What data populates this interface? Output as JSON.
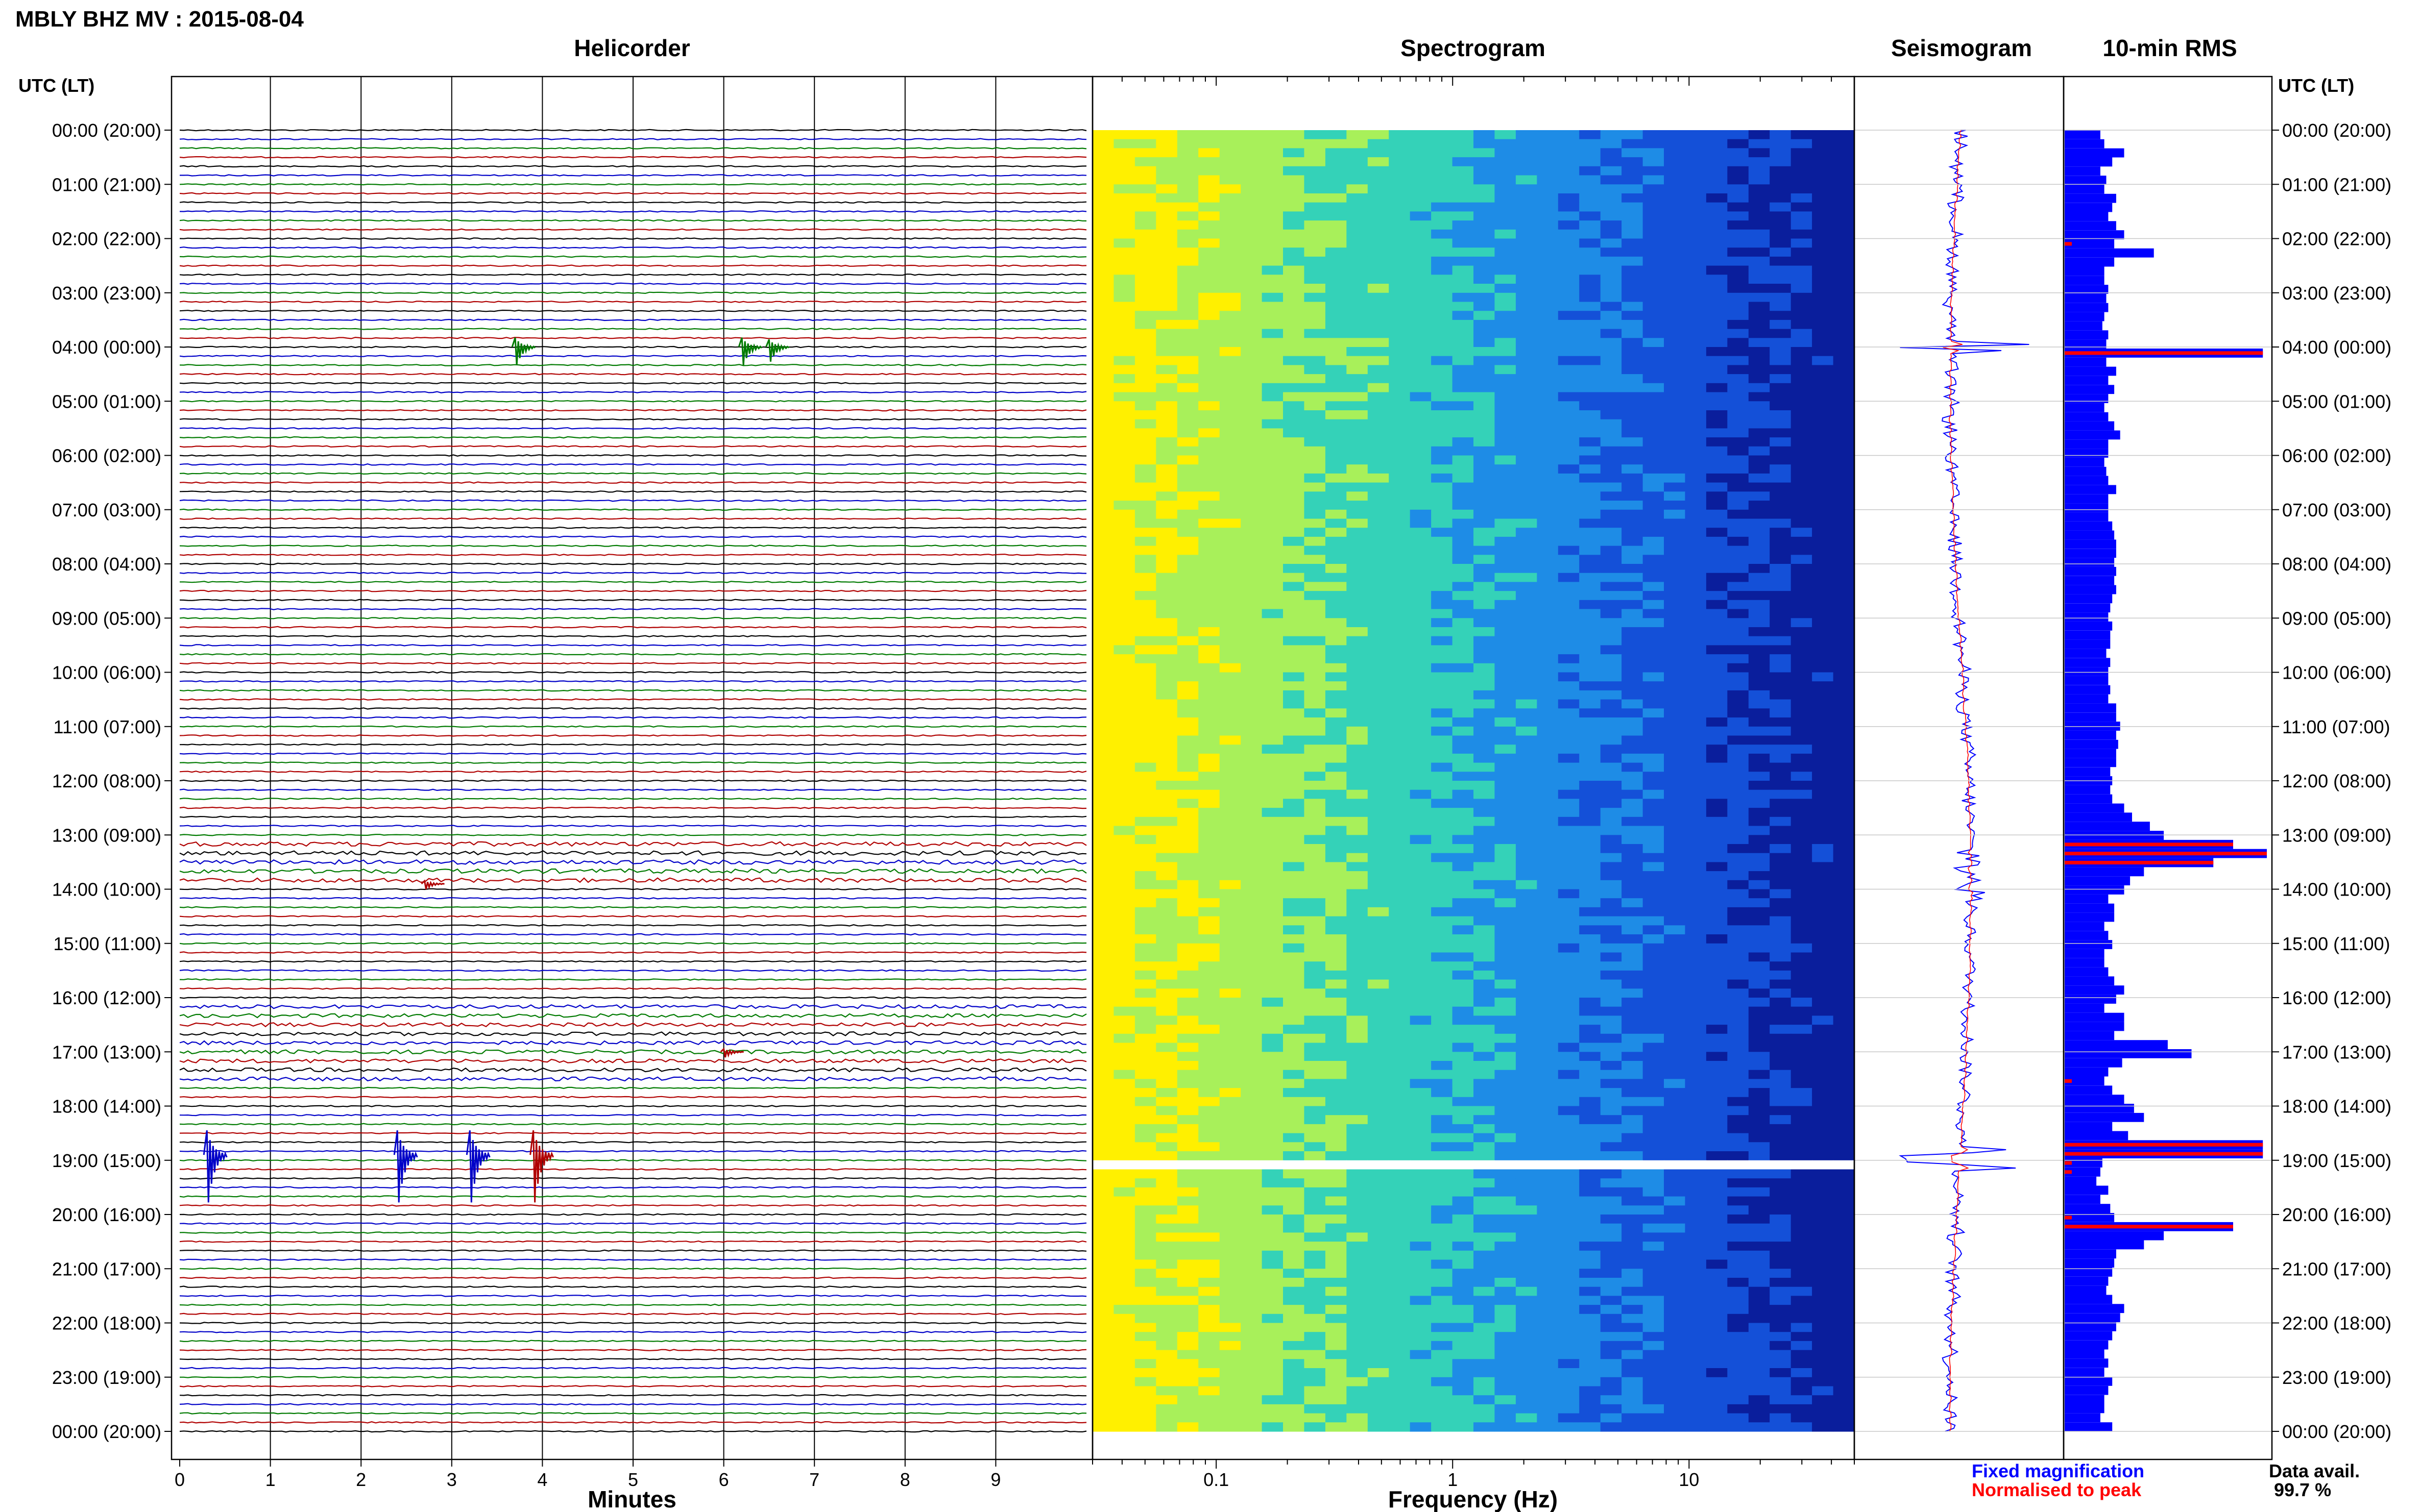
{
  "chart_data": {
    "type": "seismic-dashboard",
    "title": "MBLY BHZ MV : 2015-08-04",
    "time_axis_label": "UTC (LT)",
    "time_labels": [
      "00:00 (20:00)",
      "01:00 (21:00)",
      "02:00 (22:00)",
      "03:00 (23:00)",
      "04:00 (00:00)",
      "05:00 (01:00)",
      "06:00 (02:00)",
      "07:00 (03:00)",
      "08:00 (04:00)",
      "09:00 (05:00)",
      "10:00 (06:00)",
      "11:00 (07:00)",
      "12:00 (08:00)",
      "13:00 (09:00)",
      "14:00 (10:00)",
      "15:00 (11:00)",
      "16:00 (12:00)",
      "17:00 (13:00)",
      "18:00 (14:00)",
      "19:00 (15:00)",
      "20:00 (16:00)",
      "21:00 (17:00)",
      "22:00 (18:00)",
      "23:00 (19:00)",
      "00:00 (20:00)"
    ],
    "panels": {
      "helicorder": {
        "title": "Helicorder",
        "xlabel": "Minutes",
        "x_ticks": [
          "0",
          "1",
          "2",
          "3",
          "4",
          "5",
          "6",
          "7",
          "8",
          "9"
        ],
        "xlim": [
          0,
          10
        ],
        "trace_colors": [
          "#000000",
          "#0000c8",
          "#007a00",
          "#b00000"
        ],
        "traces_per_hour": 6,
        "events": [
          {
            "hour": 4.0,
            "minute": 3.7,
            "amp": 1.0,
            "color": "#007a00"
          },
          {
            "hour": 4.0,
            "minute": 6.2,
            "amp": 1.0,
            "color": "#007a00"
          },
          {
            "hour": 4.0,
            "minute": 6.5,
            "amp": 0.8,
            "color": "#007a00"
          },
          {
            "hour": 13.9,
            "minute": 2.7,
            "amp": 0.3,
            "color": "#b00000"
          },
          {
            "hour": 17.0,
            "minute": 6.0,
            "amp": 0.3,
            "color": "#b00000"
          },
          {
            "hour": 18.9,
            "minute": 0.3,
            "amp": 2.6,
            "color": "#0000c8"
          },
          {
            "hour": 18.9,
            "minute": 2.4,
            "amp": 2.6,
            "color": "#0000c8"
          },
          {
            "hour": 18.9,
            "minute": 3.2,
            "amp": 2.6,
            "color": "#0000c8"
          },
          {
            "hour": 18.9,
            "minute": 3.9,
            "amp": 2.6,
            "color": "#b00000"
          }
        ]
      },
      "spectrogram": {
        "title": "Spectrogram",
        "xlabel": "Frequency (Hz)",
        "x_scale": "log",
        "xlim": [
          0.03,
          50
        ],
        "x_ticks": [
          {
            "value": 0.1,
            "label": "0.1"
          },
          {
            "value": 1,
            "label": "1"
          },
          {
            "value": 10,
            "label": "10"
          }
        ],
        "colormap": [
          "#fff000",
          "#a8f05a",
          "#34d2b8",
          "#1e8ce6",
          "#1450d8",
          "#0a1e9c"
        ],
        "gap_hours": [
          19.0
        ]
      },
      "seismogram": {
        "title": "Seismogram",
        "colors": {
          "fixed": "#0000ff",
          "normalised": "#ff0000"
        }
      },
      "rms": {
        "title": "10-min RMS",
        "bin_minutes": 10,
        "bar_color": "#0000ff",
        "peak_color": "#ff0000",
        "values": [
          0.18,
          0.2,
          0.3,
          0.24,
          0.18,
          0.21,
          0.2,
          0.26,
          0.24,
          0.22,
          0.26,
          0.3,
          0.25,
          0.45,
          0.25,
          0.2,
          0.2,
          0.22,
          0.21,
          0.22,
          0.2,
          0.19,
          0.22,
          0.21,
          1.0,
          0.21,
          0.26,
          0.22,
          0.25,
          0.22,
          0.2,
          0.22,
          0.25,
          0.28,
          0.22,
          0.22,
          0.2,
          0.21,
          0.22,
          0.26,
          0.22,
          0.22,
          0.22,
          0.24,
          0.25,
          0.26,
          0.26,
          0.25,
          0.26,
          0.25,
          0.26,
          0.24,
          0.23,
          0.22,
          0.24,
          0.23,
          0.23,
          0.21,
          0.23,
          0.22,
          0.22,
          0.23,
          0.22,
          0.26,
          0.26,
          0.28,
          0.26,
          0.27,
          0.26,
          0.26,
          0.23,
          0.24,
          0.23,
          0.24,
          0.3,
          0.34,
          0.43,
          0.5,
          0.85,
          1.02,
          0.75,
          0.4,
          0.33,
          0.3,
          0.22,
          0.25,
          0.25,
          0.2,
          0.22,
          0.24,
          0.2,
          0.2,
          0.22,
          0.25,
          0.3,
          0.26,
          0.2,
          0.3,
          0.3,
          0.25,
          0.52,
          0.64,
          0.29,
          0.22,
          0.2,
          0.24,
          0.3,
          0.35,
          0.4,
          0.24,
          0.32,
          1.0,
          1.0,
          0.19,
          0.18,
          0.16,
          0.22,
          0.18,
          0.23,
          0.25,
          0.85,
          0.5,
          0.4,
          0.26,
          0.25,
          0.24,
          0.22,
          0.21,
          0.24,
          0.3,
          0.28,
          0.26,
          0.24,
          0.22,
          0.2,
          0.22,
          0.2,
          0.24,
          0.22,
          0.2,
          0.2,
          0.18,
          0.24
        ],
        "peak_bins": [
          12,
          24,
          78,
          79,
          80,
          104,
          111,
          112,
          113,
          114,
          119,
          120
        ]
      }
    },
    "legend": {
      "fixed": "Fixed magnification",
      "normalised": "Normalised to peak"
    },
    "availability": {
      "label": "Data avail.",
      "value": "99.7 %"
    }
  }
}
